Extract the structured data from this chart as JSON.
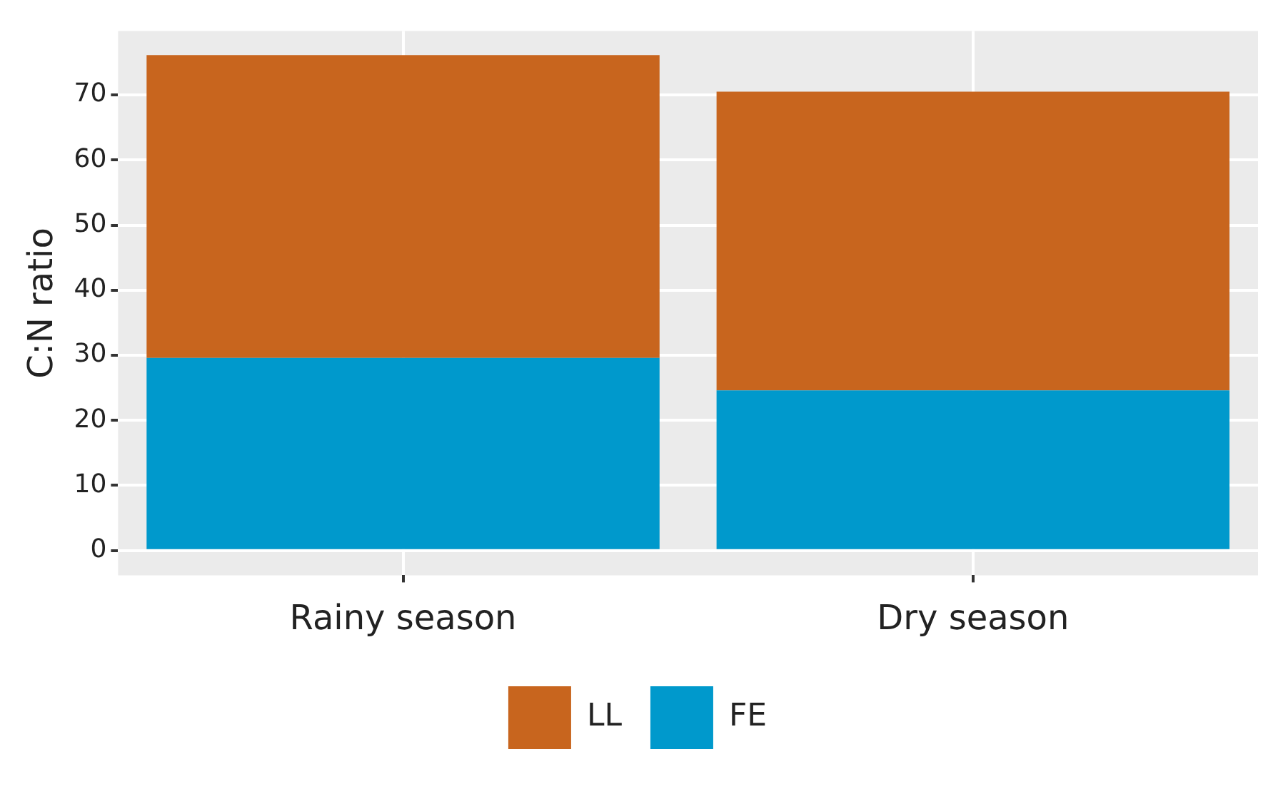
{
  "chart_data": {
    "type": "bar",
    "stacked": true,
    "ylabel": "C:N ratio",
    "categories": [
      "Rainy season",
      "Dry season"
    ],
    "series": [
      {
        "name": "FE",
        "color": "#0099cc",
        "values": [
          29.6,
          24.6
        ]
      },
      {
        "name": "LL",
        "color": "#c8651e",
        "values": [
          46.5,
          45.9
        ]
      }
    ],
    "ylim": [
      -3.8,
      79.8
    ],
    "yticks": [
      0,
      10,
      20,
      30,
      40,
      50,
      60,
      70
    ],
    "grid": true,
    "legend": "bottom"
  }
}
